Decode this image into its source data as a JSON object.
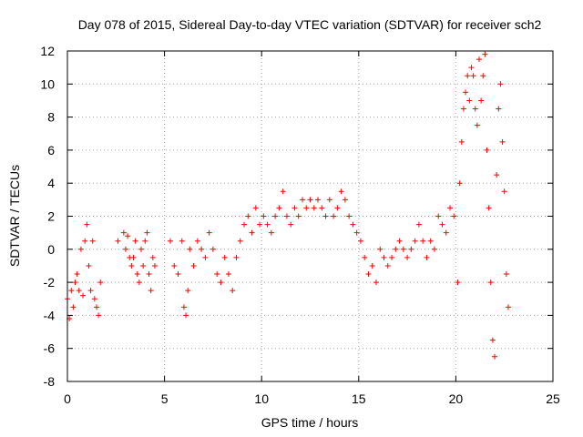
{
  "chart_data": {
    "type": "scatter",
    "title": "Day 078 of 2015, Sidereal Day-to-day VTEC variation (SDTVAR) for receiver sch2",
    "xlabel": "GPS time / hours",
    "ylabel": "SDTVAR / TECUs",
    "xlim": [
      0,
      25
    ],
    "ylim": [
      -8,
      12
    ],
    "xticks": [
      0,
      5,
      10,
      15,
      20,
      25
    ],
    "yticks": [
      -8,
      -6,
      -4,
      -2,
      0,
      2,
      4,
      6,
      8,
      10,
      12
    ],
    "grid": true,
    "marker": "+",
    "color": "#ff0000",
    "series": [
      {
        "name": "SDTVAR",
        "x": [
          0.0,
          0.1,
          0.2,
          0.3,
          0.4,
          0.5,
          0.6,
          0.7,
          0.8,
          0.9,
          1.0,
          1.1,
          1.2,
          1.3,
          1.4,
          1.5,
          1.6,
          1.7,
          2.6,
          2.9,
          3.0,
          3.1,
          3.2,
          3.3,
          3.4,
          3.5,
          3.6,
          3.7,
          3.8,
          3.9,
          4.0,
          4.1,
          4.2,
          4.3,
          4.4,
          4.5,
          5.3,
          5.5,
          5.7,
          5.9,
          6.0,
          6.1,
          6.2,
          6.3,
          6.5,
          6.7,
          6.9,
          7.1,
          7.3,
          7.5,
          7.7,
          7.9,
          8.1,
          8.3,
          8.5,
          8.7,
          8.9,
          9.1,
          9.3,
          9.5,
          9.7,
          9.9,
          10.1,
          10.3,
          10.5,
          10.7,
          10.9,
          11.1,
          11.3,
          11.5,
          11.7,
          11.9,
          12.1,
          12.3,
          12.5,
          12.7,
          12.9,
          13.1,
          13.3,
          13.5,
          13.7,
          13.9,
          14.1,
          14.3,
          14.5,
          14.7,
          14.9,
          15.1,
          15.3,
          15.5,
          15.7,
          15.9,
          16.1,
          16.3,
          16.5,
          16.7,
          16.9,
          17.1,
          17.3,
          17.5,
          17.7,
          17.9,
          18.1,
          18.3,
          18.5,
          18.7,
          18.9,
          19.1,
          19.3,
          19.5,
          19.7,
          19.9,
          20.1,
          20.2,
          20.3,
          20.4,
          20.5,
          20.6,
          20.7,
          20.8,
          20.9,
          21.0,
          21.1,
          21.2,
          21.3,
          21.4,
          21.5,
          21.6,
          21.7,
          21.8,
          21.9,
          22.0,
          22.1,
          22.2,
          22.3,
          22.4,
          22.5,
          22.6,
          22.7
        ],
        "y": [
          -3.0,
          -4.2,
          -2.5,
          -3.5,
          -2.0,
          -1.5,
          -2.5,
          0.0,
          -2.8,
          0.5,
          1.5,
          -1.0,
          -2.5,
          0.5,
          -3.0,
          -3.5,
          -4.0,
          -2.0,
          0.5,
          1.0,
          0.0,
          0.8,
          -0.5,
          -1.0,
          -0.5,
          0.5,
          -1.5,
          -2.0,
          0.0,
          -1.0,
          0.5,
          1.0,
          -1.5,
          -2.5,
          -0.5,
          -1.0,
          0.5,
          -1.0,
          -1.5,
          0.5,
          -3.5,
          -4.0,
          -2.5,
          0.0,
          -1.0,
          0.5,
          0.0,
          -0.5,
          1.0,
          0.0,
          -1.5,
          -2.0,
          -0.5,
          -1.5,
          -2.5,
          -0.5,
          0.5,
          1.5,
          2.0,
          1.0,
          2.5,
          1.5,
          2.0,
          1.5,
          1.0,
          2.0,
          2.5,
          3.5,
          2.0,
          1.5,
          2.5,
          2.0,
          3.0,
          2.5,
          3.0,
          2.5,
          3.0,
          2.5,
          2.0,
          3.0,
          2.0,
          2.5,
          3.5,
          3.0,
          2.0,
          1.5,
          1.0,
          0.5,
          -0.5,
          -1.5,
          -1.0,
          -2.0,
          0.0,
          -0.5,
          -1.0,
          -0.5,
          0.0,
          0.5,
          0.0,
          -0.5,
          0.0,
          0.5,
          1.5,
          0.5,
          -0.5,
          0.5,
          0.0,
          2.0,
          1.5,
          1.0,
          2.5,
          2.0,
          -2.0,
          4.0,
          6.5,
          8.5,
          9.5,
          10.5,
          9.0,
          11.0,
          10.5,
          8.5,
          7.5,
          11.5,
          9.0,
          10.5,
          11.8,
          6.0,
          2.5,
          -2.0,
          -5.5,
          -6.5,
          4.5,
          8.5,
          10.0,
          6.5,
          3.5,
          -1.5,
          -3.5
        ]
      }
    ]
  }
}
